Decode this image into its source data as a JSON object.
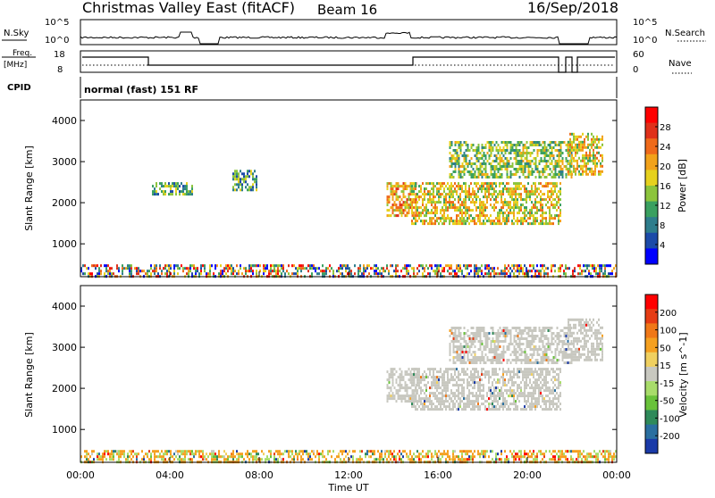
{
  "header": {
    "station": "Christmas Valley East (fitACF)",
    "beam": "Beam 16",
    "date": "16/Sep/2018"
  },
  "status_panels": {
    "nsky_label": "N.Sky",
    "nsky_ticks": [
      "10^5",
      "10^0"
    ],
    "nsearch_label": "N.Search",
    "nsearch_ticks": [
      "10^5",
      "10^0"
    ],
    "freq_label_line1": "Freq.",
    "freq_label_line2": "[MHz]",
    "freq_ticks": [
      "18",
      "8"
    ],
    "nave_label": "Nave",
    "nave_ticks": [
      "60",
      "0"
    ],
    "cpid_label": "CPID",
    "cpid_value": "normal (fast) 151 RF"
  },
  "chart_data": [
    {
      "type": "heatmap",
      "name": "power-panel",
      "ylabel": "Slant Range [km]",
      "yticks": [
        "1000",
        "2000",
        "3000",
        "4000"
      ],
      "ylim_km": [
        200,
        4500
      ],
      "xlim_hours": [
        0,
        24
      ],
      "colorbar_label": "Power [dB]",
      "colorbar_ticks": [
        "4",
        "8",
        "12",
        "16",
        "20",
        "24",
        "28"
      ],
      "colorbar_colors": [
        "#0000ff",
        "#1c4aa8",
        "#2e7d8c",
        "#3aa060",
        "#8cc43c",
        "#e6d11e",
        "#f2a21a",
        "#ef6a1a",
        "#e0301a",
        "#ff0000"
      ],
      "echo_regions": [
        {
          "t_start": 0.0,
          "t_end": 24.0,
          "r_min": 200,
          "r_max": 500,
          "level": "mixed"
        },
        {
          "t_start": 3.2,
          "t_end": 5.0,
          "r_min": 2200,
          "r_max": 2500,
          "level": 0.35
        },
        {
          "t_start": 6.8,
          "t_end": 7.9,
          "r_min": 2300,
          "r_max": 2800,
          "level": 0.35
        },
        {
          "t_start": 13.7,
          "t_end": 15.0,
          "r_min": 1700,
          "r_max": 2500,
          "level": 0.7
        },
        {
          "t_start": 14.8,
          "t_end": 21.5,
          "r_min": 1500,
          "r_max": 2500,
          "level": 0.55
        },
        {
          "t_start": 16.5,
          "t_end": 22.0,
          "r_min": 2600,
          "r_max": 3500,
          "level": 0.45
        },
        {
          "t_start": 21.8,
          "t_end": 23.4,
          "r_min": 2700,
          "r_max": 3700,
          "level": 0.6
        }
      ]
    },
    {
      "type": "heatmap",
      "name": "velocity-panel",
      "ylabel": "Slant Range [km]",
      "yticks": [
        "1000",
        "2000",
        "3000",
        "4000"
      ],
      "ylim_km": [
        200,
        4500
      ],
      "xlim_hours": [
        0,
        24
      ],
      "xlabel": "Time UT",
      "xticks": [
        "00:00",
        "04:00",
        "08:00",
        "12:00",
        "16:00",
        "20:00",
        "00:00"
      ],
      "colorbar_label": "Velocity [m s^-1]",
      "colorbar_ticks": [
        "200",
        "100",
        "50",
        "15",
        "-15",
        "-50",
        "-100",
        "-200"
      ],
      "colorbar_colors": [
        "#1a3aa8",
        "#2a6fa0",
        "#2f8a5a",
        "#69c23a",
        "#a8dc6a",
        "#c8c8c0",
        "#f0d060",
        "#f5a020",
        "#f07818",
        "#e63c14",
        "#ff0000"
      ],
      "echo_regions": [
        {
          "t_start": 0.0,
          "t_end": 24.0,
          "r_min": 200,
          "r_max": 500,
          "level": "mixed"
        },
        {
          "t_start": 13.7,
          "t_end": 15.0,
          "r_min": 1700,
          "r_max": 2500,
          "level": "gs"
        },
        {
          "t_start": 14.8,
          "t_end": 21.5,
          "r_min": 1500,
          "r_max": 2500,
          "level": "gs"
        },
        {
          "t_start": 16.5,
          "t_end": 22.0,
          "r_min": 2600,
          "r_max": 3500,
          "level": "gs"
        },
        {
          "t_start": 21.8,
          "t_end": 23.4,
          "r_min": 2700,
          "r_max": 3700,
          "level": "gs"
        }
      ]
    }
  ]
}
